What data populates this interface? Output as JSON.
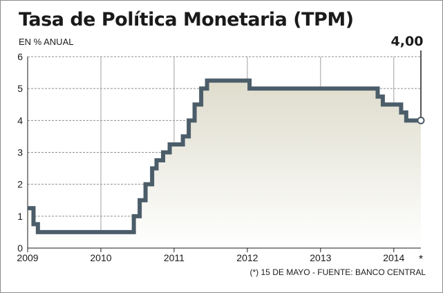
{
  "chart_data": {
    "type": "line",
    "title": "Tasa de Política Monetaria (TPM)",
    "subtitle": "EN % ANUAL",
    "footnote": "(*) 15 DE MAYO - FUENTE: BANCO CENTRAL",
    "last_value_label": "4,00",
    "last_marker_label": "*",
    "ylim": [
      0,
      6
    ],
    "y_ticks": [
      0,
      1,
      2,
      3,
      4,
      5,
      6
    ],
    "xlim": [
      2009.0,
      2014.37
    ],
    "x_ticks": [
      {
        "x": 2009.0,
        "label": "2009"
      },
      {
        "x": 2010.0,
        "label": "2010"
      },
      {
        "x": 2011.0,
        "label": "2011"
      },
      {
        "x": 2012.0,
        "label": "2012"
      },
      {
        "x": 2013.0,
        "label": "2013"
      },
      {
        "x": 2014.0,
        "label": "2014"
      }
    ],
    "grid": true,
    "line_color": "#4c5d6a",
    "fill_top_color": "#dedccc",
    "step": true,
    "series": [
      {
        "points": [
          [
            2009.0,
            1.25
          ],
          [
            2009.08,
            0.75
          ],
          [
            2009.14,
            0.5
          ],
          [
            2010.45,
            1.0
          ],
          [
            2010.53,
            1.5
          ],
          [
            2010.61,
            2.0
          ],
          [
            2010.7,
            2.5
          ],
          [
            2010.76,
            2.75
          ],
          [
            2010.85,
            3.0
          ],
          [
            2010.94,
            3.25
          ],
          [
            2011.12,
            3.5
          ],
          [
            2011.2,
            4.0
          ],
          [
            2011.28,
            4.5
          ],
          [
            2011.37,
            5.0
          ],
          [
            2011.45,
            5.25
          ],
          [
            2012.03,
            5.0
          ],
          [
            2013.78,
            4.75
          ],
          [
            2013.85,
            4.5
          ],
          [
            2014.1,
            4.25
          ],
          [
            2014.17,
            4.0
          ],
          [
            2014.37,
            4.0
          ]
        ]
      }
    ]
  }
}
